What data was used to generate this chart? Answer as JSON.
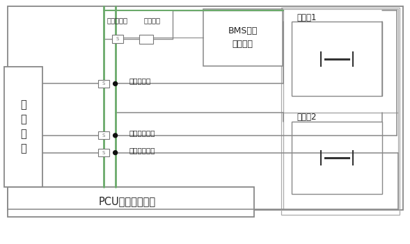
{
  "fig_width": 5.89,
  "fig_height": 3.51,
  "dpi": 100,
  "bg": "#ffffff",
  "lc": "#888888",
  "gc": "#6aaa6a",
  "dc": "#111111",
  "texts": {
    "pcu": "PCU动力控制单元",
    "user": "用\n户\n装\n置",
    "bms": "BMS电源\n管理系统",
    "bat1": "电池包1",
    "bat2": "电池包2",
    "pre_sw": "预充接触器",
    "pre_r": "预充电阻",
    "main_pos": "主正接触器",
    "main_neg1": "主负接触器一",
    "main_neg2": "主负接触器二"
  }
}
